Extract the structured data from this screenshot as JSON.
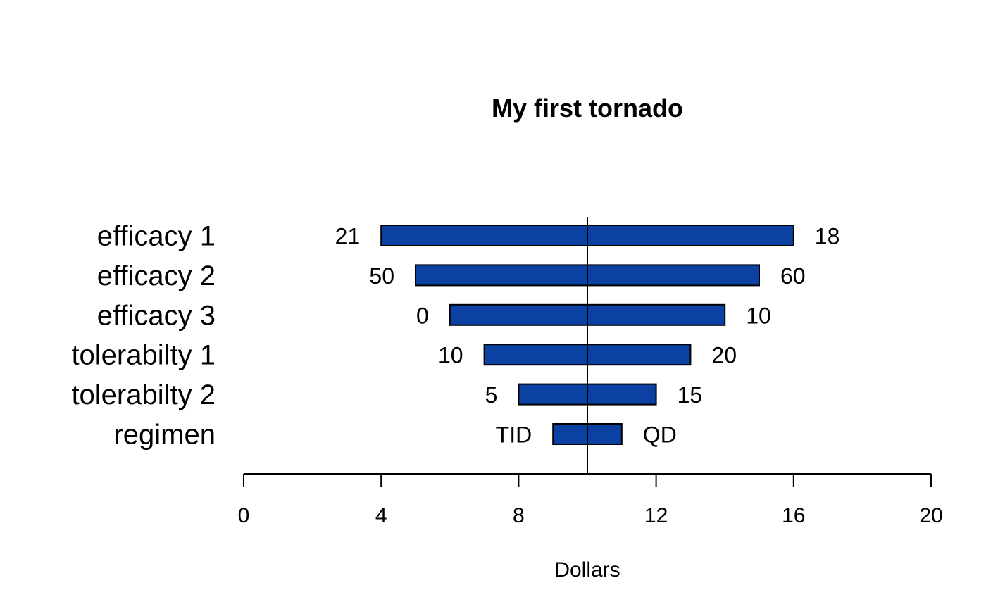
{
  "chart_data": {
    "type": "bar",
    "orientation": "horizontal",
    "title": "My first tornado",
    "xlabel": "Dollars",
    "ylabel": "",
    "xlim": [
      0,
      20
    ],
    "xticks": [
      0,
      4,
      8,
      12,
      16,
      20
    ],
    "baseline": 10,
    "bar_color": "#0b41a3",
    "grid": false,
    "categories": [
      "efficacy 1",
      "efficacy 2",
      "efficacy 3",
      "tolerabilty 1",
      "tolerabilty 2",
      "regimen"
    ],
    "low": [
      4,
      5,
      6,
      7,
      8,
      9
    ],
    "high": [
      16,
      15,
      14,
      13,
      12,
      11
    ],
    "low_labels": [
      "21",
      "50",
      "0",
      "10",
      "5",
      "TID"
    ],
    "high_labels": [
      "18",
      "60",
      "10",
      "20",
      "15",
      "QD"
    ]
  }
}
